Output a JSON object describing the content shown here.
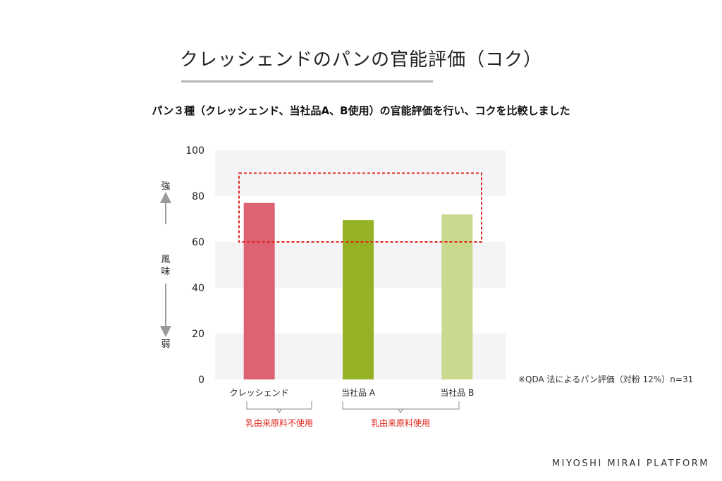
{
  "title": "クレッシェンドのパンの官能評価（コク）",
  "subtitle": "パン３種（クレッシェンド、当社品A、B使用）の官能評価を行い、コクを比較しました",
  "note": "※QDA 法によるパン評価（対粉 12%）n=31",
  "brand": "MIYOSHI MIRAI PLATFORM",
  "y_axis_label": {
    "top": "強",
    "middle_1": "風",
    "middle_2": "味",
    "bottom": "弱"
  },
  "groups": [
    {
      "label": "乳由来原料不使用",
      "categories": [
        0
      ]
    },
    {
      "label": "乳由来原料使用",
      "categories": [
        1,
        2
      ]
    }
  ],
  "colors": {
    "accent_red": "#e0241a",
    "band": "#f4f4f7"
  },
  "chart_data": {
    "type": "bar",
    "categories": [
      "クレッシェンド",
      "当社品 A",
      "当社品 B"
    ],
    "values": [
      77,
      69.5,
      72
    ],
    "bar_colors": [
      "#dd6373",
      "#94b224",
      "#c9d98e"
    ],
    "ylim": [
      0,
      100
    ],
    "yticks": [
      0,
      20,
      40,
      60,
      80,
      100
    ],
    "grid": "alternating horizontal bands",
    "highlight_box": {
      "y_from": 60,
      "y_to": 90,
      "style": "red dashed"
    }
  }
}
